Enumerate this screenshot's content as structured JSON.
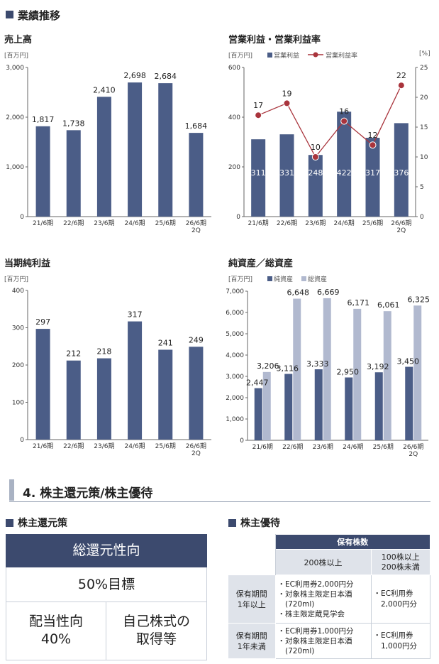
{
  "section_header": "業績推移",
  "charts": {
    "sales": {
      "title": "売上高",
      "unit": "[百万円]"
    },
    "op": {
      "title": "営業利益・営業利益率",
      "unit_left": "[百万円]",
      "unit_right": "[%]",
      "legend_bar": "営業利益",
      "legend_line": "営業利益率"
    },
    "net": {
      "title": "当期純利益",
      "unit": "[百万円]"
    },
    "assets": {
      "title": "純資産／総資産",
      "unit": "[百万円]",
      "legend_a": "純資産",
      "legend_b": "総資産"
    }
  },
  "chart_data": [
    {
      "type": "bar",
      "title": "売上高",
      "categories": [
        "21/6期",
        "22/6期",
        "23/6期",
        "24/6期",
        "25/6期",
        "26/6期\n2Q"
      ],
      "values": [
        1817,
        1738,
        2410,
        2698,
        2684,
        1684
      ],
      "value_labels": [
        "1,817",
        "1,738",
        "2,410",
        "2,698",
        "2,684",
        "1,684"
      ],
      "ylim": [
        0,
        3000
      ],
      "yticks": [
        "0",
        "1,000",
        "2,000",
        "3,000"
      ]
    },
    {
      "type": "bar",
      "title": "営業利益・営業利益率",
      "categories": [
        "21/6期",
        "22/6期",
        "23/6期",
        "24/6期",
        "25/6期",
        "26/6期\n2Q"
      ],
      "series": [
        {
          "name": "営業利益",
          "values": [
            311,
            331,
            248,
            422,
            317,
            376
          ]
        },
        {
          "name": "営業利益率",
          "values": [
            17,
            19,
            10,
            16,
            12,
            22
          ]
        }
      ],
      "ylim": [
        0,
        600
      ],
      "yticks": [
        "0",
        "200",
        "400",
        "600"
      ],
      "y2lim": [
        0,
        25
      ],
      "y2ticks": [
        "0",
        "5",
        "10",
        "15",
        "20",
        "25"
      ]
    },
    {
      "type": "bar",
      "title": "当期純利益",
      "categories": [
        "21/6期",
        "22/6期",
        "23/6期",
        "24/6期",
        "25/6期",
        "26/6期\n2Q"
      ],
      "values": [
        297,
        212,
        218,
        317,
        241,
        249
      ],
      "ylim": [
        0,
        400
      ],
      "yticks": [
        "0",
        "100",
        "200",
        "300",
        "400"
      ]
    },
    {
      "type": "bar",
      "title": "純資産／総資産",
      "categories": [
        "21/6期",
        "22/6期",
        "23/6期",
        "24/6期",
        "25/6期",
        "26/6期\n2Q"
      ],
      "series": [
        {
          "name": "純資産",
          "values": [
            2447,
            3116,
            3333,
            2950,
            3192,
            3450
          ],
          "labels": [
            "2,447",
            "3,116",
            "3,333",
            "2,950",
            "3,192",
            "3,450"
          ]
        },
        {
          "name": "総資産",
          "values": [
            3206,
            6648,
            6669,
            6171,
            6061,
            6325
          ],
          "labels": [
            "3,206",
            "6,648",
            "6,669",
            "6,171",
            "6,061",
            "6,325"
          ]
        }
      ],
      "ylim": [
        0,
        7000
      ],
      "yticks": [
        "0",
        "1,000",
        "2,000",
        "3,000",
        "4,000",
        "5,000",
        "6,000",
        "7,000"
      ]
    }
  ],
  "section4": {
    "title": "4. 株主還元策/株主優待",
    "return_policy": {
      "heading": "株主還元策",
      "banner": "総還元性向",
      "target": "50%目標",
      "payout_line1": "配当性向",
      "payout_line2": "40%",
      "buyback_line1": "自己株式の",
      "buyback_line2": "取得等"
    },
    "benefits": {
      "heading": "株主優待",
      "col_group": "保有株数",
      "col1": "200株以上",
      "col2": "100株以上\n200株未満",
      "row1_label": "保有期間\n1年以上",
      "row1_col1": [
        "・EC利用券2,000円分",
        "・対象株主限定日本酒",
        "　(720ml)",
        "・株主限定蔵見学会"
      ],
      "row1_col2": "・EC利用券\n　2,000円分",
      "row2_label": "保有期間\n1年未満",
      "row2_col1": [
        "・EC利用券1,000円分",
        "・対象株主限定日本酒",
        "　(720ml)"
      ],
      "row2_col2": "・EC利用券\n　1,000円分"
    }
  },
  "colors": {
    "bar": "#4b5d87",
    "bar_light": "#b1b9cf",
    "line": "#a9343c",
    "header": "#3c4a6e"
  }
}
